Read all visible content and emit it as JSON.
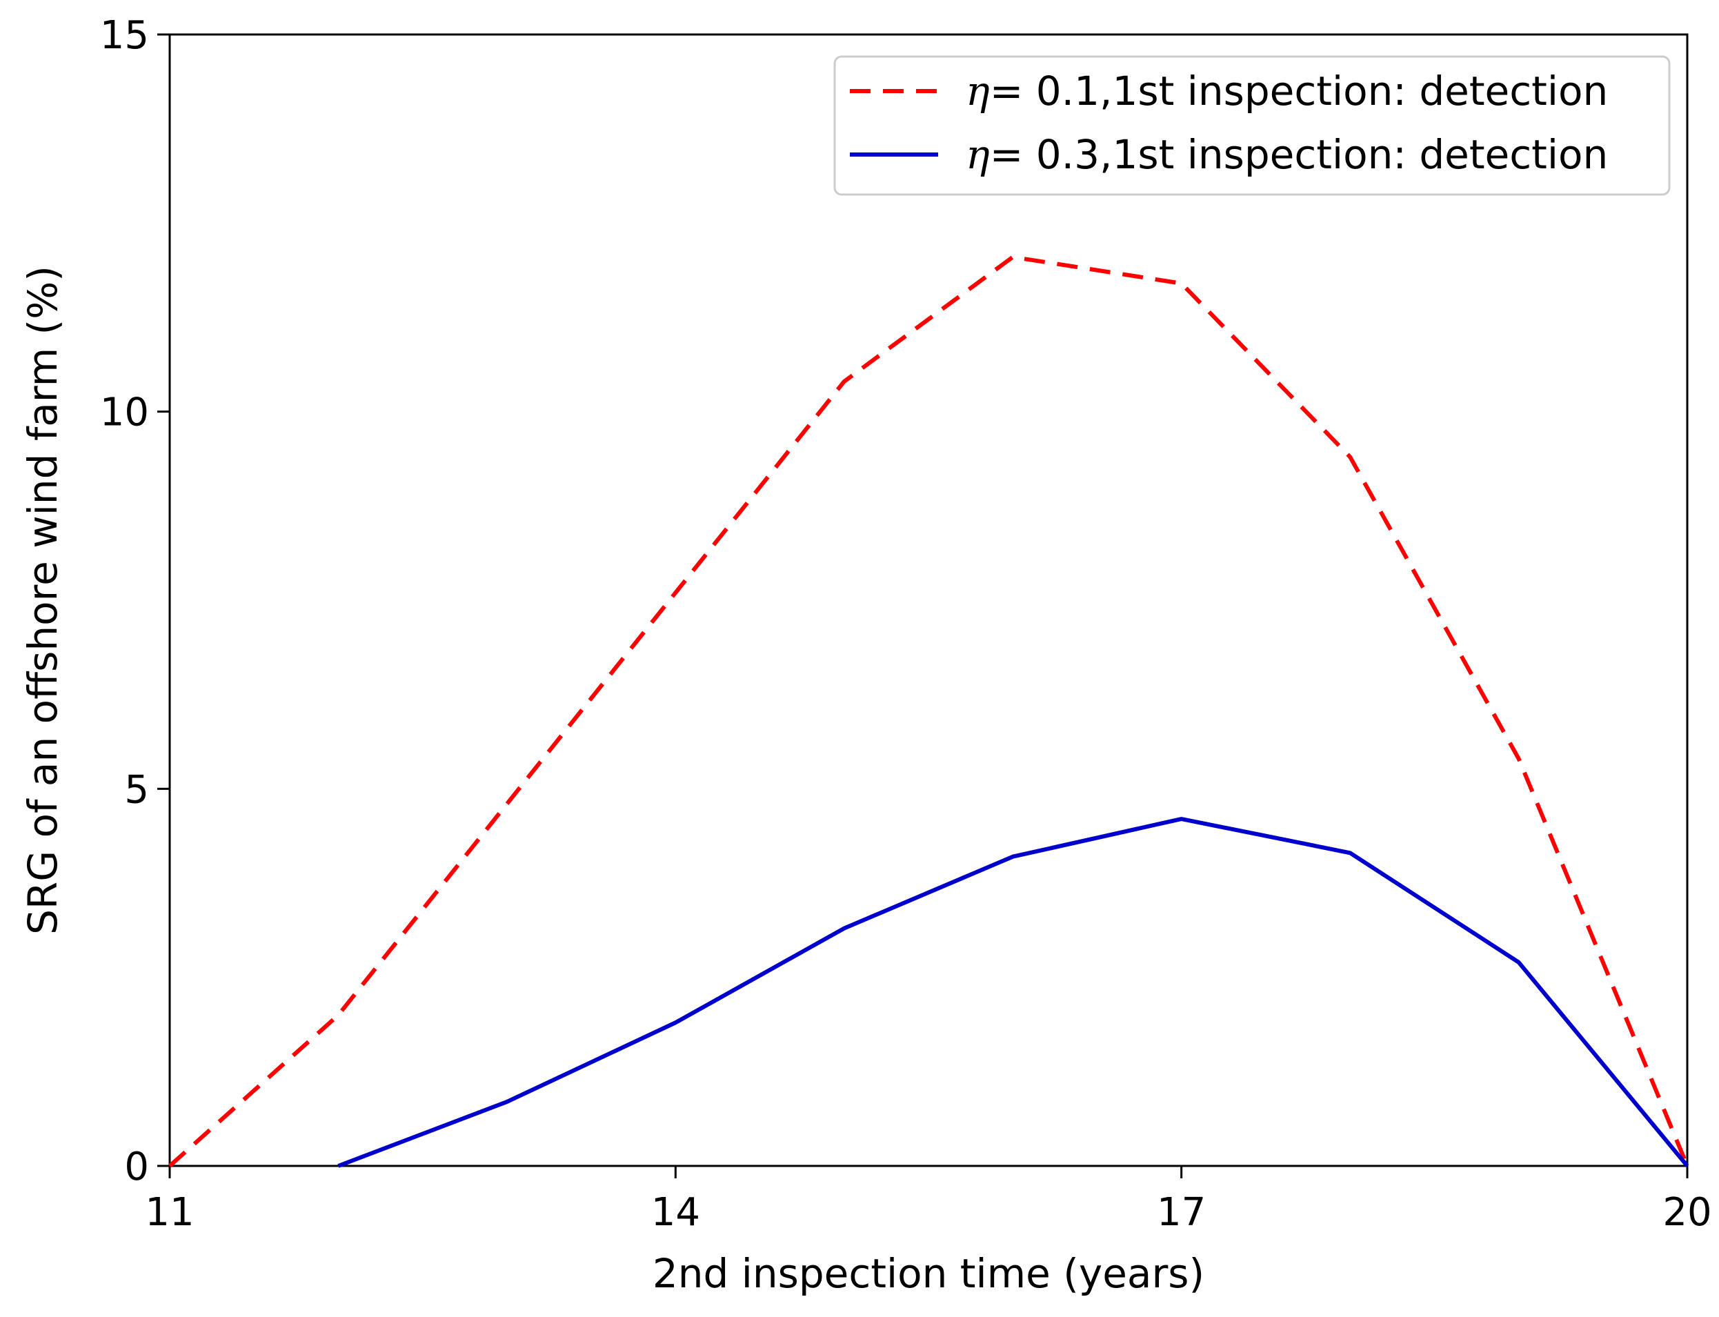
{
  "chart_data": {
    "type": "line",
    "xlabel": "2nd inspection time (years)",
    "ylabel": "SRG of an offshore wind farm (%)",
    "xlim": [
      11,
      20
    ],
    "ylim": [
      0,
      15
    ],
    "xticks": [
      11,
      14,
      17,
      20
    ],
    "yticks": [
      0,
      5,
      10,
      15
    ],
    "grid": false,
    "legend_position": "top-right",
    "series": [
      {
        "name": "η= 0.1,1st inspection: detection",
        "color": "#ff0000",
        "style": "dashed",
        "x": [
          11,
          12,
          13,
          14,
          15,
          16,
          17,
          18,
          19,
          20
        ],
        "y": [
          0,
          2.0,
          4.8,
          7.6,
          10.4,
          12.05,
          11.7,
          9.4,
          5.4,
          0
        ]
      },
      {
        "name": "η= 0.3,1st inspection: detection",
        "color": "#0000cc",
        "style": "solid",
        "x": [
          12,
          13,
          14,
          15,
          16,
          17,
          18,
          19,
          20
        ],
        "y": [
          0,
          0.85,
          1.9,
          3.15,
          4.1,
          4.6,
          4.15,
          2.7,
          0
        ]
      }
    ]
  }
}
